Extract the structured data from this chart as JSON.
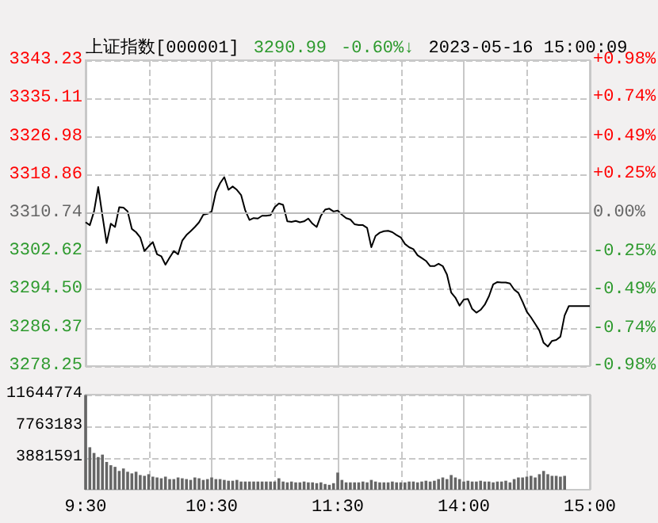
{
  "chart_data": [
    {
      "type": "line",
      "title": "上证指数[000001]",
      "annotations": [
        "3290.99",
        "-0.60%↓",
        "2023-05-16 15:00:09"
      ],
      "categories": [
        null,
        null,
        null,
        null,
        null,
        null,
        null,
        null,
        null,
        null,
        null,
        null,
        null,
        null,
        null,
        null,
        null,
        null,
        null,
        null,
        null,
        null,
        null,
        null,
        null,
        null,
        null,
        null,
        null,
        null,
        null,
        null,
        null,
        null,
        null,
        null,
        null,
        null,
        null,
        null,
        null,
        null,
        null,
        null,
        null,
        null,
        null,
        null,
        null,
        null,
        null,
        null,
        null,
        null,
        null,
        null,
        null,
        null,
        null,
        null,
        null,
        null,
        null,
        null,
        null,
        null,
        null,
        null,
        null,
        null,
        null,
        null,
        null,
        null,
        null,
        null,
        null,
        null,
        null,
        null,
        null,
        null,
        null,
        null,
        null,
        null,
        null,
        null,
        null,
        null,
        null,
        null,
        null,
        null,
        null,
        null,
        null,
        null,
        null,
        null,
        null,
        null,
        null,
        null,
        null,
        null,
        null,
        null,
        null,
        null,
        null,
        null,
        null,
        null,
        null,
        null,
        null,
        null,
        null,
        null,
        null
      ],
      "series": [
        {
          "color": "#000000",
          "values": [
            3308.8,
            3308.2,
            3311.1,
            3316.3,
            3310.2,
            3304.4,
            3308.5,
            3307.8,
            3312.0,
            3311.9,
            3311.1,
            3307.4,
            3306.7,
            3305.6,
            3302.7,
            3303.7,
            3304.6,
            3302.0,
            3301.6,
            3299.8,
            3301.3,
            3302.7,
            3302.0,
            3304.9,
            3306.1,
            3306.9,
            3307.8,
            3308.8,
            3310.4,
            3310.6,
            3311.1,
            3315.2,
            3317.1,
            3318.4,
            3315.7,
            3316.4,
            3315.7,
            3314.6,
            3311.3,
            3309.3,
            3309.7,
            3309.6,
            3310.2,
            3310.2,
            3310.3,
            3312.0,
            3312.8,
            3312.5,
            3309.0,
            3308.9,
            3309.1,
            3308.8,
            3309.0,
            3309.6,
            3308.5,
            3307.8,
            3310.2,
            3311.5,
            3311.7,
            3311.1,
            3311.3,
            3310.4,
            3309.7,
            3309.4,
            3308.4,
            3308.2,
            3308.2,
            3307.6,
            3303.5,
            3305.9,
            3306.6,
            3306.9,
            3307.0,
            3306.7,
            3306.1,
            3305.6,
            3304.2,
            3303.5,
            3303.1,
            3301.8,
            3301.2,
            3300.6,
            3299.5,
            3299.5,
            3300.0,
            3299.5,
            3297.7,
            3293.9,
            3292.8,
            3291.1,
            3292.4,
            3292.5,
            3290.4,
            3289.6,
            3290.2,
            3291.3,
            3293.1,
            3295.6,
            3296.1,
            3296.0,
            3296.0,
            3295.8,
            3294.5,
            3293.8,
            3291.9,
            3289.8,
            3288.6,
            3287.2,
            3285.8,
            3283.2,
            3282.4,
            3283.6,
            3283.8,
            3284.5,
            3289.0,
            3291.0,
            3291.0,
            3291.0,
            3291.0,
            3291.0,
            3291.0
          ]
        }
      ],
      "ylim": [
        3278.25,
        3343.23
      ],
      "yticks": [
        3278.25,
        3286.37,
        {
          "value": 3294.5,
          "label": "3294.50"
        },
        3302.62,
        3310.74,
        3318.86,
        3326.98,
        3335.11,
        3343.23
      ],
      "y2lim": [
        -0.98,
        0.98
      ],
      "y2ticks": [
        {
          "value": -0.98,
          "label": "-0.98%"
        },
        {
          "value": -0.74,
          "label": "-0.74%"
        },
        {
          "value": -0.49,
          "label": "-0.49%"
        },
        {
          "value": -0.25,
          "label": "-0.25%"
        },
        {
          "value": 0,
          "label": "0.00%"
        },
        {
          "value": 0.25,
          "label": "+0.25%"
        },
        {
          "value": 0.49,
          "label": "+0.49%"
        },
        {
          "value": 0.74,
          "label": "+0.74%"
        },
        {
          "value": 0.98,
          "label": "+0.98%"
        }
      ],
      "ref_lines": [
        {
          "axis": "y",
          "value": 3310.74
        }
      ],
      "grid": true,
      "marker": "none"
    },
    {
      "type": "bar",
      "categories": [
        "9:30",
        null,
        null,
        null,
        null,
        null,
        null,
        null,
        null,
        null,
        null,
        null,
        null,
        null,
        null,
        null,
        null,
        null,
        null,
        null,
        null,
        null,
        null,
        null,
        null,
        null,
        null,
        null,
        null,
        null,
        "10:30",
        null,
        null,
        null,
        null,
        null,
        null,
        null,
        null,
        null,
        null,
        null,
        null,
        null,
        null,
        null,
        null,
        null,
        null,
        null,
        null,
        null,
        null,
        null,
        null,
        null,
        null,
        null,
        null,
        null,
        "11:30",
        null,
        null,
        null,
        null,
        null,
        null,
        null,
        null,
        null,
        null,
        null,
        null,
        null,
        null,
        null,
        null,
        null,
        null,
        null,
        null,
        null,
        null,
        null,
        null,
        null,
        null,
        null,
        null,
        null,
        "14:00",
        null,
        null,
        null,
        null,
        null,
        null,
        null,
        null,
        null,
        null,
        null,
        null,
        null,
        null,
        null,
        null,
        null,
        null,
        null,
        null,
        null,
        null,
        null,
        null,
        null,
        null,
        null,
        null,
        null,
        "15:00"
      ],
      "series": [
        {
          "color": "#666666",
          "values": [
            11600000,
            5200000,
            4500000,
            4000000,
            4300000,
            3400000,
            3000000,
            2800000,
            2300000,
            2600000,
            2200000,
            2000000,
            2200000,
            1800000,
            1700000,
            1900000,
            1600000,
            1500000,
            1400000,
            1600000,
            1300000,
            1300000,
            1500000,
            1400000,
            1300000,
            1200000,
            1500000,
            1400000,
            1200000,
            1300000,
            1500000,
            1300000,
            1300000,
            1200000,
            1100000,
            1100000,
            1200000,
            1000000,
            1000000,
            1000000,
            1000000,
            1000000,
            1000000,
            1000000,
            1000000,
            1000000,
            1400000,
            1000000,
            900000,
            1000000,
            900000,
            900000,
            1000000,
            900000,
            900000,
            800000,
            900000,
            700000,
            600000,
            800000,
            2100000,
            1200000,
            900000,
            900000,
            900000,
            900000,
            1000000,
            900000,
            1200000,
            1000000,
            900000,
            900000,
            900000,
            1000000,
            900000,
            900000,
            900000,
            1000000,
            1000000,
            900000,
            1000000,
            1100000,
            1000000,
            1100000,
            1300000,
            1500000,
            1300000,
            1800000,
            1500000,
            1300000,
            1000000,
            1100000,
            1000000,
            1000000,
            1100000,
            1000000,
            1000000,
            900000,
            1000000,
            1000000,
            1100000,
            900000,
            1300000,
            1500000,
            1500000,
            1600000,
            1700000,
            1500000,
            1900000,
            2300000,
            1900000,
            1700000,
            1700000,
            1600000,
            1700000,
            null,
            null,
            null,
            null,
            null,
            null
          ]
        }
      ],
      "ylim": [
        0,
        11644774
      ],
      "yticks": [
        3881591,
        7763183,
        11644774
      ],
      "grid": true
    }
  ]
}
